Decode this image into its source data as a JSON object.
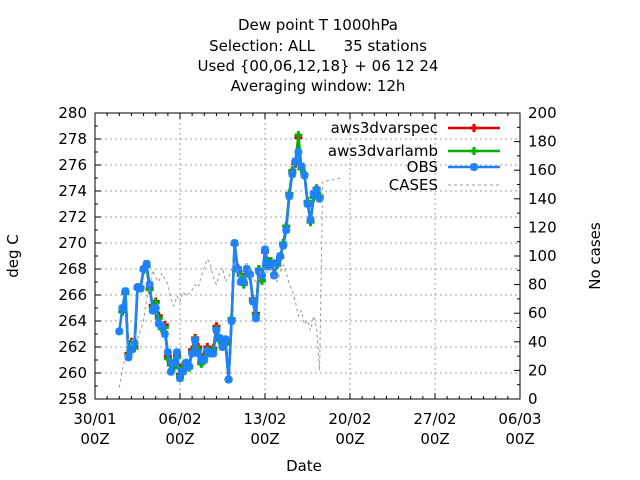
{
  "chart_data": {
    "type": "line",
    "title_lines": [
      "Dew point T 1000hPa",
      "Selection: ALL      35 stations",
      "Used {00,06,12,18} + 06 12 24",
      "Averaging window: 12h"
    ],
    "xlabel": "Date",
    "ylabel": "deg C",
    "y2label": "No cases",
    "x_unit": "days since 30/01 00Z",
    "xlim": [
      0,
      35
    ],
    "ylim": [
      258,
      280
    ],
    "y2lim": [
      0,
      200
    ],
    "x_ticks": [
      {
        "x": 0,
        "line1": "30/01",
        "line2": "00Z"
      },
      {
        "x": 7,
        "line1": "06/02",
        "line2": "00Z"
      },
      {
        "x": 14,
        "line1": "13/02",
        "line2": "00Z"
      },
      {
        "x": 21,
        "line1": "20/02",
        "line2": "00Z"
      },
      {
        "x": 28,
        "line1": "27/02",
        "line2": "00Z"
      },
      {
        "x": 35,
        "line1": "06/03",
        "line2": "00Z"
      }
    ],
    "y_ticks": [
      258,
      260,
      262,
      264,
      266,
      268,
      270,
      272,
      274,
      276,
      278,
      280
    ],
    "y2_ticks": [
      0,
      20,
      40,
      60,
      80,
      100,
      120,
      140,
      160,
      180,
      200
    ],
    "grid": true,
    "legend_position": "top-right",
    "series": [
      {
        "name": "aws3dvarspec",
        "color": "#e00000",
        "marker": "plus",
        "points": [
          [
            2.25,
            264.7
          ],
          [
            2.5,
            266.2
          ],
          [
            2.75,
            261.5
          ],
          [
            3.0,
            262.4
          ],
          [
            3.25,
            262.0
          ],
          [
            3.5,
            266.6
          ],
          [
            3.75,
            266.6
          ],
          [
            4.0,
            268.0
          ],
          [
            4.25,
            268.2
          ],
          [
            4.5,
            266.5
          ],
          [
            4.75,
            265.2
          ],
          [
            5.0,
            265.5
          ],
          [
            5.25,
            264.4
          ],
          [
            5.5,
            263.5
          ],
          [
            5.75,
            263.7
          ],
          [
            6.0,
            261.3
          ],
          [
            6.25,
            260.8
          ],
          [
            6.5,
            260.6
          ],
          [
            6.75,
            261.4
          ],
          [
            7.0,
            259.9
          ],
          [
            7.25,
            260.6
          ],
          [
            7.5,
            260.6
          ],
          [
            7.75,
            260.5
          ],
          [
            8.0,
            261.8
          ],
          [
            8.25,
            262.7
          ],
          [
            8.5,
            262.0
          ],
          [
            8.75,
            260.8
          ],
          [
            9.0,
            261.4
          ],
          [
            9.25,
            262.0
          ],
          [
            9.5,
            261.6
          ],
          [
            9.75,
            261.9
          ],
          [
            10.0,
            263.6
          ],
          [
            10.25,
            262.6
          ],
          [
            10.5,
            262.3
          ],
          [
            10.75,
            262.4
          ],
          [
            11.0,
            259.5
          ],
          [
            11.25,
            264.1
          ],
          [
            11.5,
            269.9
          ],
          [
            11.75,
            268.1
          ],
          [
            12.0,
            267.6
          ],
          [
            12.25,
            266.9
          ],
          [
            12.5,
            267.9
          ],
          [
            12.75,
            267.6
          ],
          [
            13.0,
            265.7
          ],
          [
            13.25,
            264.6
          ],
          [
            13.5,
            268.0
          ],
          [
            13.75,
            267.1
          ],
          [
            14.0,
            269.3
          ],
          [
            14.25,
            268.6
          ],
          [
            14.5,
            268.6
          ],
          [
            14.75,
            267.6
          ],
          [
            15.0,
            268.3
          ],
          [
            15.25,
            268.9
          ],
          [
            15.5,
            269.9
          ],
          [
            15.75,
            271.3
          ],
          [
            16.0,
            273.8
          ],
          [
            16.25,
            275.5
          ],
          [
            16.5,
            276.1
          ],
          [
            16.75,
            278.1
          ],
          [
            17.0,
            275.7
          ],
          [
            17.25,
            275.3
          ],
          [
            17.5,
            273.2
          ],
          [
            17.75,
            271.7
          ],
          [
            18.0,
            273.5
          ],
          [
            18.25,
            274.2
          ],
          [
            18.5,
            273.6
          ]
        ]
      },
      {
        "name": "aws3dvarlamb",
        "color": "#00b000",
        "marker": "plus",
        "points": [
          [
            2.25,
            264.7
          ],
          [
            2.5,
            266.1
          ],
          [
            2.75,
            261.4
          ],
          [
            3.0,
            262.3
          ],
          [
            3.25,
            261.9
          ],
          [
            3.5,
            266.5
          ],
          [
            3.75,
            266.5
          ],
          [
            4.0,
            267.9
          ],
          [
            4.25,
            268.2
          ],
          [
            4.5,
            266.4
          ],
          [
            4.75,
            265.1
          ],
          [
            5.0,
            265.4
          ],
          [
            5.25,
            264.2
          ],
          [
            5.5,
            263.4
          ],
          [
            5.75,
            263.5
          ],
          [
            6.0,
            261.1
          ],
          [
            6.25,
            260.6
          ],
          [
            6.5,
            260.4
          ],
          [
            6.75,
            261.2
          ],
          [
            7.0,
            259.8
          ],
          [
            7.25,
            260.4
          ],
          [
            7.5,
            260.5
          ],
          [
            7.75,
            260.4
          ],
          [
            8.0,
            261.6
          ],
          [
            8.25,
            262.6
          ],
          [
            8.5,
            261.8
          ],
          [
            8.75,
            260.7
          ],
          [
            9.0,
            261.2
          ],
          [
            9.25,
            261.8
          ],
          [
            9.5,
            261.5
          ],
          [
            9.75,
            261.8
          ],
          [
            10.0,
            263.4
          ],
          [
            10.25,
            262.5
          ],
          [
            10.5,
            262.2
          ],
          [
            10.75,
            262.2
          ],
          [
            11.0,
            259.5
          ],
          [
            11.25,
            264.2
          ],
          [
            11.5,
            269.9
          ],
          [
            11.75,
            268.0
          ],
          [
            12.0,
            267.5
          ],
          [
            12.25,
            266.8
          ],
          [
            12.5,
            267.9
          ],
          [
            12.75,
            267.5
          ],
          [
            13.0,
            265.6
          ],
          [
            13.25,
            264.5
          ],
          [
            13.5,
            268.0
          ],
          [
            13.75,
            267.1
          ],
          [
            14.0,
            269.4
          ],
          [
            14.25,
            268.6
          ],
          [
            14.5,
            268.6
          ],
          [
            14.75,
            267.6
          ],
          [
            15.0,
            268.3
          ],
          [
            15.25,
            268.9
          ],
          [
            15.5,
            270.0
          ],
          [
            15.75,
            271.3
          ],
          [
            16.0,
            273.8
          ],
          [
            16.25,
            275.6
          ],
          [
            16.5,
            276.2
          ],
          [
            16.75,
            278.3
          ],
          [
            17.0,
            275.7
          ],
          [
            17.25,
            275.3
          ],
          [
            17.5,
            273.2
          ],
          [
            17.75,
            271.6
          ],
          [
            18.0,
            273.5
          ],
          [
            18.25,
            274.2
          ],
          [
            18.5,
            273.6
          ]
        ]
      },
      {
        "name": "OBS",
        "color": "#1e82ff",
        "marker": "star",
        "points": [
          [
            2.0,
            263.2
          ],
          [
            2.25,
            265.0
          ],
          [
            2.5,
            266.3
          ],
          [
            2.75,
            261.2
          ],
          [
            3.0,
            261.8
          ],
          [
            3.25,
            262.3
          ],
          [
            3.5,
            266.6
          ],
          [
            3.75,
            266.5
          ],
          [
            4.0,
            268.0
          ],
          [
            4.25,
            268.4
          ],
          [
            4.5,
            266.8
          ],
          [
            4.75,
            264.8
          ],
          [
            5.0,
            265.0
          ],
          [
            5.25,
            263.8
          ],
          [
            5.5,
            263.6
          ],
          [
            5.75,
            263.0
          ],
          [
            6.0,
            261.6
          ],
          [
            6.25,
            260.1
          ],
          [
            6.5,
            260.8
          ],
          [
            6.75,
            261.6
          ],
          [
            7.0,
            259.6
          ],
          [
            7.25,
            260.1
          ],
          [
            7.5,
            260.8
          ],
          [
            7.75,
            260.5
          ],
          [
            8.0,
            261.5
          ],
          [
            8.25,
            262.5
          ],
          [
            8.5,
            261.5
          ],
          [
            8.75,
            261.0
          ],
          [
            9.0,
            261.0
          ],
          [
            9.25,
            261.7
          ],
          [
            9.5,
            261.5
          ],
          [
            9.75,
            261.5
          ],
          [
            10.0,
            263.3
          ],
          [
            10.25,
            262.7
          ],
          [
            10.5,
            262.0
          ],
          [
            10.75,
            262.6
          ],
          [
            11.0,
            259.5
          ],
          [
            11.25,
            264.0
          ],
          [
            11.5,
            270.0
          ],
          [
            11.75,
            268.0
          ],
          [
            12.0,
            267.0
          ],
          [
            12.25,
            267.0
          ],
          [
            12.5,
            268.0
          ],
          [
            12.75,
            267.6
          ],
          [
            13.0,
            265.5
          ],
          [
            13.25,
            264.2
          ],
          [
            13.5,
            267.8
          ],
          [
            13.75,
            267.5
          ],
          [
            14.0,
            269.5
          ],
          [
            14.25,
            268.2
          ],
          [
            14.5,
            268.4
          ],
          [
            14.75,
            267.5
          ],
          [
            15.0,
            268.5
          ],
          [
            15.25,
            269.0
          ],
          [
            15.5,
            269.8
          ],
          [
            15.75,
            271.0
          ],
          [
            16.0,
            273.6
          ],
          [
            16.25,
            275.3
          ],
          [
            16.5,
            276.3
          ],
          [
            16.75,
            277.0
          ],
          [
            17.0,
            275.9
          ],
          [
            17.25,
            275.2
          ],
          [
            17.5,
            273.0
          ],
          [
            17.75,
            271.8
          ],
          [
            18.0,
            273.8
          ],
          [
            18.25,
            274.1
          ],
          [
            18.5,
            273.4
          ]
        ]
      },
      {
        "name": "CASES",
        "color": "#999999",
        "axis": "right",
        "style": "dashed",
        "points": [
          [
            2.0,
            8
          ],
          [
            2.25,
            20
          ],
          [
            2.5,
            30
          ],
          [
            2.75,
            42
          ],
          [
            3.0,
            38
          ],
          [
            3.25,
            45
          ],
          [
            3.5,
            42
          ],
          [
            3.75,
            48
          ],
          [
            4.0,
            55
          ],
          [
            4.25,
            70
          ],
          [
            4.5,
            78
          ],
          [
            4.75,
            90
          ],
          [
            5.0,
            85
          ],
          [
            5.25,
            82
          ],
          [
            5.5,
            88
          ],
          [
            5.75,
            84
          ],
          [
            6.0,
            80
          ],
          [
            6.25,
            70
          ],
          [
            6.5,
            65
          ],
          [
            6.75,
            72
          ],
          [
            7.0,
            68
          ],
          [
            7.25,
            75
          ],
          [
            7.5,
            72
          ],
          [
            7.75,
            74
          ],
          [
            8.0,
            76
          ],
          [
            8.25,
            80
          ],
          [
            8.5,
            78
          ],
          [
            8.75,
            86
          ],
          [
            9.0,
            92
          ],
          [
            9.25,
            98
          ],
          [
            9.5,
            94
          ],
          [
            9.75,
            85
          ],
          [
            10.0,
            80
          ],
          [
            10.25,
            88
          ],
          [
            10.5,
            92
          ],
          [
            10.75,
            82
          ],
          [
            11.0,
            85
          ],
          [
            11.25,
            90
          ],
          [
            11.5,
            96
          ],
          [
            11.75,
            88
          ],
          [
            12.0,
            84
          ],
          [
            12.25,
            92
          ],
          [
            12.5,
            96
          ],
          [
            12.75,
            88
          ],
          [
            13.0,
            84
          ],
          [
            13.25,
            82
          ],
          [
            13.5,
            84
          ],
          [
            13.75,
            92
          ],
          [
            14.0,
            90
          ],
          [
            14.25,
            88
          ],
          [
            14.5,
            92
          ],
          [
            14.75,
            86
          ],
          [
            15.0,
            82
          ],
          [
            15.25,
            88
          ],
          [
            15.5,
            94
          ],
          [
            15.75,
            88
          ],
          [
            16.0,
            80
          ],
          [
            16.25,
            76
          ],
          [
            16.5,
            68
          ],
          [
            16.75,
            58
          ],
          [
            17.0,
            62
          ],
          [
            17.25,
            52
          ],
          [
            17.5,
            55
          ],
          [
            17.75,
            48
          ],
          [
            18.0,
            58
          ],
          [
            18.25,
            50
          ],
          [
            18.5,
            20
          ],
          [
            18.75,
            152
          ],
          [
            19.0,
            152
          ],
          [
            19.25,
            153
          ],
          [
            19.5,
            153
          ],
          [
            19.75,
            154
          ],
          [
            20.0,
            154
          ],
          [
            20.25,
            155
          ]
        ]
      }
    ]
  }
}
